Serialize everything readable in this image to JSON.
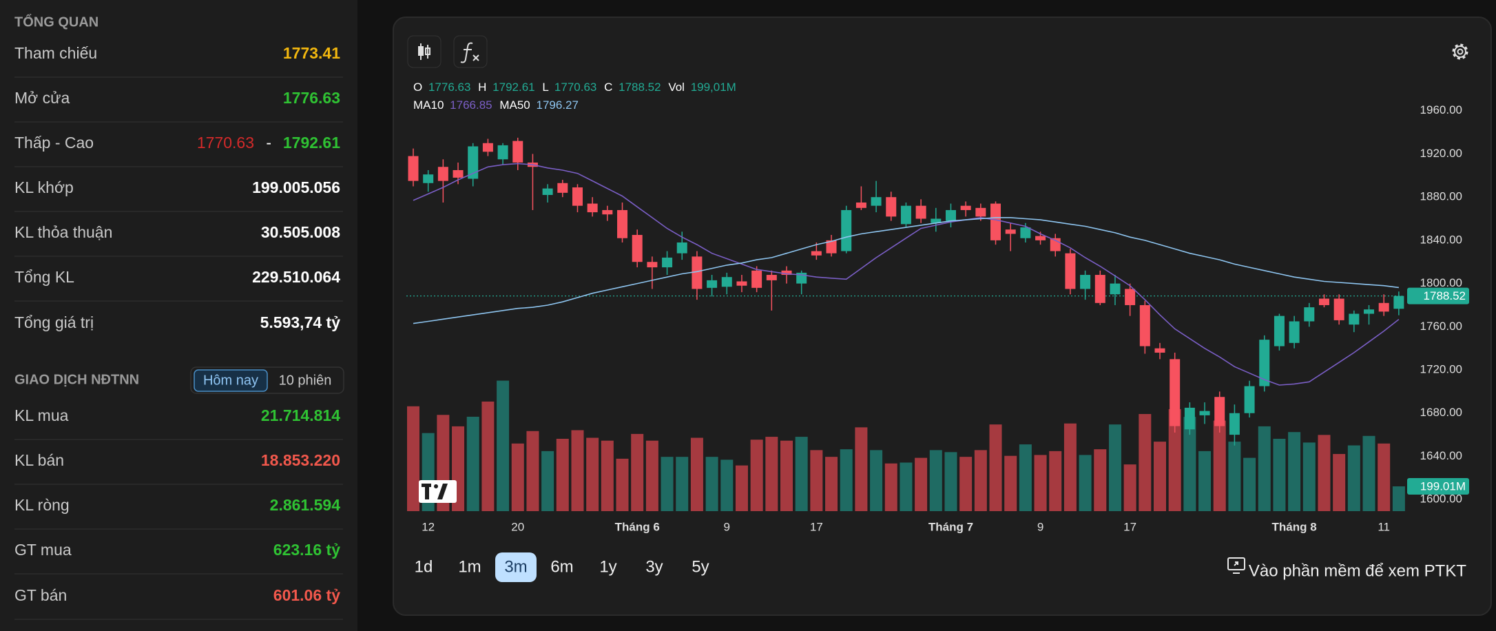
{
  "overview": {
    "title": "TỔNG QUAN",
    "rows": [
      {
        "label": "Tham chiếu",
        "value": "1773.41"
      },
      {
        "label": "Mở cửa",
        "value": "1776.63"
      },
      {
        "label": "Thấp - Cao",
        "low": "1770.63",
        "separator": "-",
        "high": "1792.61"
      },
      {
        "label": "KL khớp",
        "value": "199.005.056"
      },
      {
        "label": "KL thỏa thuận",
        "value": "30.505.008"
      },
      {
        "label": "Tổng KL",
        "value": "229.510.064"
      },
      {
        "label": "Tổng giá trị",
        "value": "5.593,74 tỷ"
      }
    ]
  },
  "foreign": {
    "title": "GIAO DỊCH NĐTNN",
    "tabs": [
      "Hôm nay",
      "10 phiên"
    ],
    "rows": [
      {
        "label": "KL mua",
        "value": "21.714.814"
      },
      {
        "label": "KL bán",
        "value": "18.853.220"
      },
      {
        "label": "KL ròng",
        "value": "2.861.594"
      },
      {
        "label": "GT mua",
        "value": "623.16 tỷ"
      },
      {
        "label": "GT bán",
        "value": "601.06 tỷ"
      }
    ]
  },
  "timeframes": {
    "options": [
      "1d",
      "1m",
      "3m",
      "6m",
      "1y",
      "3y",
      "5y"
    ],
    "active": "3m"
  },
  "link": "Vào phần mềm để xem PTKT",
  "chart_data": {
    "type": "candlestick",
    "header": {
      "labels": [
        "O",
        "H",
        "L",
        "C",
        "Vol"
      ],
      "volume_label": "199,01M"
    },
    "up_color": "#22ab94",
    "down_color": "#f7525f",
    "volume_up_color": "#1f6b63",
    "volume_down_color": "#a63a40",
    "categories": [
      null,
      "12",
      null,
      null,
      null,
      null,
      null,
      "20",
      null,
      null,
      null,
      null,
      null,
      null,
      null,
      "Tháng 6",
      null,
      null,
      null,
      null,
      null,
      "9",
      null,
      null,
      null,
      null,
      null,
      "17",
      null,
      null,
      null,
      null,
      null,
      null,
      null,
      null,
      "Tháng 7",
      null,
      null,
      null,
      null,
      null,
      "9",
      null,
      null,
      null,
      null,
      null,
      "17",
      null,
      null,
      null,
      null,
      null,
      null,
      null,
      null,
      null,
      null,
      "Tháng 8",
      null,
      null,
      null,
      null,
      null,
      "11",
      null
    ],
    "open": [
      1918,
      1893,
      1908,
      1905,
      1897,
      1930,
      1915,
      1932,
      1912,
      1882,
      1893,
      1889,
      1874,
      1868,
      1868,
      1845,
      1820,
      1815,
      1828,
      1825,
      1796,
      1797,
      1802,
      1812,
      1808,
      1812,
      1800,
      1830,
      1840,
      1830,
      1875,
      1872,
      1880,
      1855,
      1872,
      1856,
      1858,
      1872,
      1870,
      1874,
      1850,
      1842,
      1844,
      1842,
      1828,
      1795,
      1808,
      1790,
      1795,
      1780,
      1740,
      1730,
      1665,
      1678,
      1695,
      1660,
      1680,
      1705,
      1742,
      1745,
      1765,
      1786,
      1786,
      1762,
      1772,
      1782,
      1776.63
    ],
    "high": [
      1925,
      1905,
      1915,
      1912,
      1930,
      1934,
      1930,
      1935,
      1920,
      1892,
      1896,
      1892,
      1880,
      1872,
      1875,
      1850,
      1825,
      1830,
      1848,
      1830,
      1808,
      1810,
      1808,
      1816,
      1812,
      1816,
      1812,
      1838,
      1845,
      1872,
      1890,
      1895,
      1885,
      1875,
      1878,
      1870,
      1874,
      1876,
      1874,
      1876,
      1856,
      1856,
      1848,
      1846,
      1832,
      1812,
      1812,
      1808,
      1800,
      1784,
      1745,
      1736,
      1690,
      1690,
      1700,
      1688,
      1710,
      1752,
      1772,
      1770,
      1782,
      1790,
      1790,
      1775,
      1780,
      1790,
      1792.61
    ],
    "low": [
      1890,
      1885,
      1875,
      1892,
      1890,
      1918,
      1910,
      1905,
      1868,
      1875,
      1880,
      1866,
      1862,
      1858,
      1838,
      1815,
      1795,
      1808,
      1822,
      1785,
      1788,
      1790,
      1792,
      1792,
      1775,
      1800,
      1790,
      1822,
      1825,
      1828,
      1868,
      1866,
      1858,
      1852,
      1856,
      1848,
      1852,
      1862,
      1858,
      1836,
      1830,
      1838,
      1836,
      1825,
      1790,
      1785,
      1780,
      1780,
      1770,
      1735,
      1730,
      1662,
      1660,
      1670,
      1662,
      1650,
      1676,
      1700,
      1738,
      1740,
      1760,
      1778,
      1762,
      1755,
      1762,
      1770,
      1770.63
    ],
    "close": [
      1895,
      1901,
      1895,
      1898,
      1927,
      1922,
      1928,
      1912,
      1908,
      1888,
      1884,
      1872,
      1866,
      1864,
      1842,
      1820,
      1815,
      1824,
      1838,
      1795,
      1803,
      1806,
      1798,
      1796,
      1803,
      1808,
      1810,
      1826,
      1828,
      1868,
      1870,
      1880,
      1862,
      1872,
      1860,
      1860,
      1868,
      1868,
      1862,
      1840,
      1846,
      1852,
      1840,
      1830,
      1795,
      1808,
      1782,
      1800,
      1780,
      1742,
      1736,
      1668,
      1685,
      1682,
      1668,
      1680,
      1705,
      1748,
      1770,
      1765,
      1778,
      1780,
      1766,
      1772,
      1776,
      1774,
      1788.52
    ],
    "volume": [
      842,
      627,
      773,
      681,
      758,
      880,
      1048,
      543,
      643,
      482,
      581,
      650,
      589,
      566,
      421,
      620,
      566,
      436,
      436,
      589,
      436,
      413,
      367,
      574,
      597,
      566,
      597,
      490,
      436,
      497,
      673,
      490,
      383,
      390,
      428,
      490,
      474,
      436,
      490,
      696,
      444,
      536,
      451,
      482,
      704,
      451,
      497,
      696,
      375,
      780,
      558,
      819,
      757,
      482,
      727,
      558,
      428,
      681,
      581,
      635,
      551,
      612,
      459,
      528,
      604,
      543,
      199.01
    ],
    "volume_last_label": "199.01M",
    "volume_ylim": [
      0,
      1300
    ],
    "series": [
      {
        "name": "MA10",
        "color": "#7b5fc7",
        "values": [
          1877,
          1883,
          1889,
          1896,
          1902,
          1908,
          1910,
          1911,
          1910,
          1907,
          1905,
          1902,
          1895,
          1888,
          1881,
          1871,
          1861,
          1851,
          1843,
          1836,
          1828,
          1823,
          1818,
          1813,
          1811,
          1809,
          1808,
          1806,
          1805,
          1804,
          1814,
          1824,
          1833,
          1842,
          1851,
          1854,
          1857,
          1859,
          1861,
          1859,
          1856,
          1853,
          1846,
          1840,
          1833,
          1824,
          1816,
          1807,
          1798,
          1785,
          1771,
          1758,
          1749,
          1740,
          1732,
          1723,
          1717,
          1711,
          1706,
          1707,
          1709,
          1718,
          1727,
          1736,
          1746,
          1756,
          1766.85
        ]
      },
      {
        "name": "MA50",
        "color": "#8ec5f0",
        "values": [
          1763,
          1765,
          1767,
          1769,
          1771,
          1773,
          1775,
          1777,
          1778,
          1780,
          1783,
          1787,
          1791,
          1794,
          1797,
          1800,
          1803,
          1806,
          1809,
          1811,
          1814,
          1817,
          1819,
          1822,
          1824,
          1828,
          1832,
          1836,
          1839,
          1843,
          1846,
          1848,
          1850,
          1852,
          1854,
          1856,
          1858,
          1859,
          1860,
          1861,
          1861,
          1860,
          1859,
          1857,
          1855,
          1853,
          1850,
          1847,
          1843,
          1840,
          1836,
          1832,
          1828,
          1825,
          1822,
          1818,
          1815,
          1812,
          1809,
          1806,
          1804,
          1802,
          1801,
          1800,
          1799,
          1798,
          1796.27
        ]
      }
    ],
    "ylim": [
      1588,
      2000
    ],
    "yticks": [
      {
        "value": 1600,
        "label": "1600.00"
      },
      {
        "value": 1640,
        "label": "1640.00"
      },
      {
        "value": 1680,
        "label": "1680.00"
      },
      {
        "value": 1720,
        "label": "1720.00"
      },
      {
        "value": 1760,
        "label": "1760.00"
      },
      {
        "value": 1800,
        "label": "1800.00"
      },
      {
        "value": 1840,
        "label": "1840.00"
      },
      {
        "value": 1880,
        "label": "1880.00"
      },
      {
        "value": 1920,
        "label": "1920.00"
      },
      {
        "value": 1960,
        "label": "1960.00"
      }
    ]
  }
}
